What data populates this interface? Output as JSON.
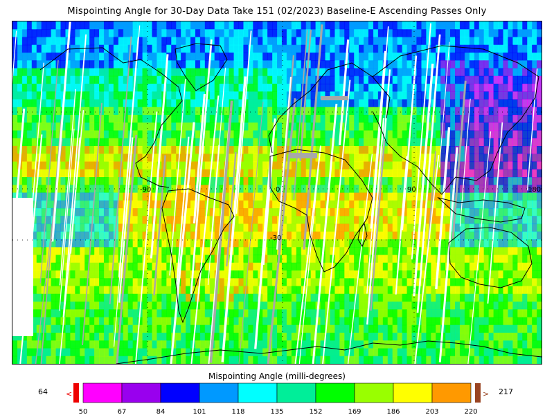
{
  "title": "Mispointing Angle for 30-Day Data Take 151 (02/2023) Baseline-E Ascending Passes Only",
  "map": {
    "lon_labels": [
      "-90",
      "0",
      "90",
      "180"
    ],
    "lat_labels": [
      "-30"
    ],
    "no_data_color": "#a8a8a8"
  },
  "colorbar": {
    "title": "Mispointing Angle (milli-degrees)",
    "units": "milli-degrees",
    "ticks": [
      "50",
      "67",
      "84",
      "101",
      "118",
      "135",
      "152",
      "169",
      "186",
      "203",
      "220"
    ],
    "colors": [
      "#ff00ff",
      "#9900ee",
      "#0000ff",
      "#0099ff",
      "#00ffff",
      "#00ee99",
      "#00ff00",
      "#99ff00",
      "#ffff00",
      "#ff9900"
    ],
    "under_color": "#ee0000",
    "over_color": "#994422",
    "under_arrow": "<",
    "over_arrow": ">",
    "min_value": "64",
    "max_value": "217"
  }
}
